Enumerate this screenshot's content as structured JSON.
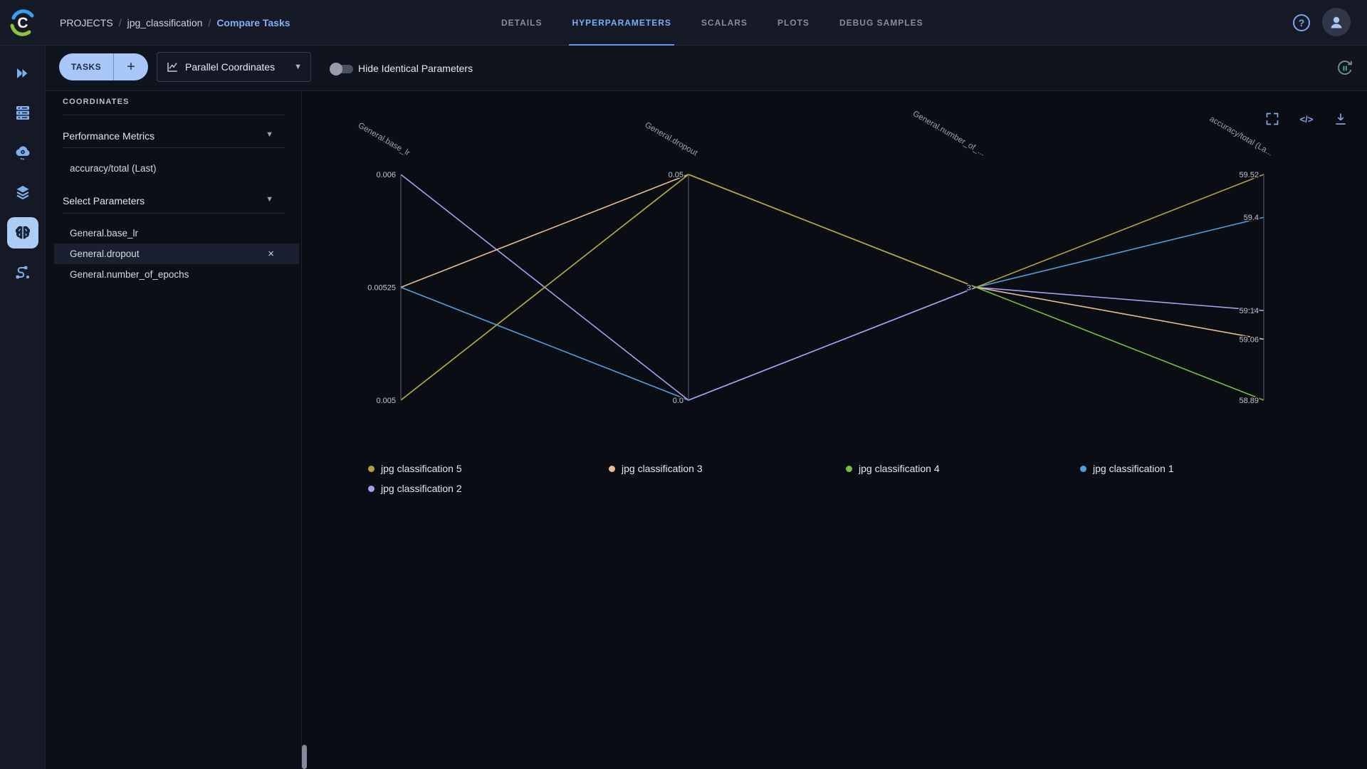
{
  "header": {
    "breadcrumb": {
      "items": [
        "PROJECTS",
        "jpg_classification",
        "Compare Tasks"
      ],
      "separator": "/"
    },
    "tabs": [
      {
        "label": "DETAILS",
        "active": false
      },
      {
        "label": "HYPERPARAMETERS",
        "active": true
      },
      {
        "label": "SCALARS",
        "active": false
      },
      {
        "label": "PLOTS",
        "active": false
      },
      {
        "label": "DEBUG SAMPLES",
        "active": false
      }
    ],
    "help_label": "?",
    "icons": [
      "clearml-logo",
      "help-icon",
      "user-avatar"
    ]
  },
  "toolbar": {
    "tasks_button": "TASKS",
    "add_button": "+",
    "view_dropdown": "Parallel Coordinates",
    "hide_identical_label": "Hide Identical Parameters",
    "toggle_state": "off",
    "icons": [
      "line-chart-icon",
      "caret-down-icon",
      "auto-refresh-icon"
    ]
  },
  "sidebar": {
    "items": [
      "projects-icon",
      "workers-queues-icon",
      "cloud-autoscaler-icon",
      "datasets-icon",
      "experiments-icon",
      "pipelines-icon"
    ],
    "active_item": "experiments-icon"
  },
  "coordinates_panel": {
    "title": "COORDINATES",
    "metrics_section": {
      "label": "Performance Metrics",
      "items": [
        "accuracy/total (Last)"
      ]
    },
    "params_section": {
      "label": "Select Parameters",
      "items": [
        "General.base_lr",
        "General.dropout",
        "General.number_of_epochs"
      ],
      "highlighted": "General.dropout",
      "remove_icon": "×"
    }
  },
  "chart_actions": {
    "maximize": "maximize-icon",
    "code_label": "</>",
    "download": "download-icon"
  },
  "chart_data": {
    "type": "parallel-coordinates",
    "axes": [
      {
        "label": "General.base_lr",
        "line": true,
        "ticks": [
          {
            "v": "0.006",
            "t": 0
          },
          {
            "v": "0.00525",
            "t": 0.5
          },
          {
            "v": "0.005",
            "t": 1
          }
        ]
      },
      {
        "label": "General.dropout",
        "line": true,
        "ticks": [
          {
            "v": "0.05",
            "t": 0
          },
          {
            "v": "0.0",
            "t": 1
          }
        ]
      },
      {
        "label": "General.number_of_...",
        "line": false,
        "ticks": [
          {
            "v": "3",
            "t": 0.5
          }
        ]
      },
      {
        "label": "accuracy/total (La...",
        "line": true,
        "ticks": [
          {
            "v": "59.52",
            "t": 0
          },
          {
            "v": "59.4",
            "t": 0.19
          },
          {
            "v": "59.14",
            "t": 0.603
          },
          {
            "v": "59.06",
            "t": 0.73
          },
          {
            "v": "58.89",
            "t": 1
          }
        ]
      }
    ],
    "series": [
      {
        "name": "jpg classification 1",
        "color": "#4da1e0",
        "values": [
          "0.00525",
          "0.0",
          "3",
          "59.4"
        ]
      },
      {
        "name": "jpg classification 2",
        "color": "#a6a1ec",
        "values": [
          "0.006",
          "0.0",
          "3",
          "59.14"
        ]
      },
      {
        "name": "jpg classification 3",
        "color": "#eabb92",
        "values": [
          "0.00525",
          "0.05",
          "3",
          "59.06"
        ]
      },
      {
        "name": "jpg classification 4",
        "color": "#73c044",
        "values": [
          "0.005",
          "0.05",
          "3",
          "58.89"
        ]
      },
      {
        "name": "jpg classification 5",
        "color": "#b3a13c",
        "values": [
          "0.005",
          "0.05",
          "3",
          "59.52"
        ]
      }
    ],
    "legend_order": [
      "jpg classification 5",
      "jpg classification 3",
      "jpg classification 4",
      "jpg classification 1",
      "jpg classification 2"
    ]
  }
}
